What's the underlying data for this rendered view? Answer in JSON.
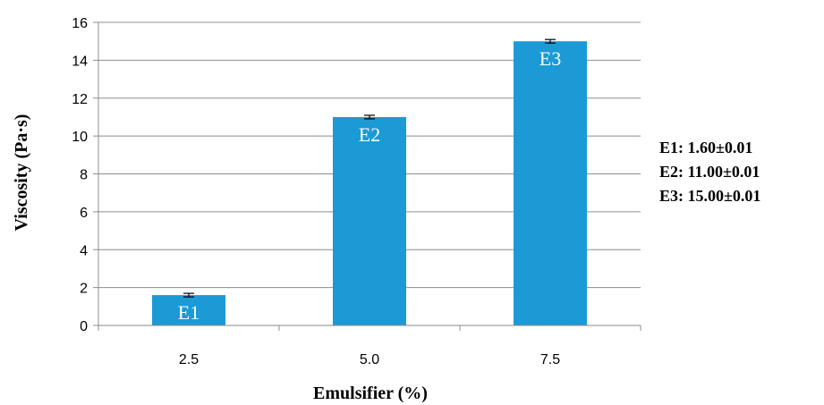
{
  "chart_data": {
    "type": "bar",
    "categories": [
      "2.5",
      "5.0",
      "7.5"
    ],
    "values": [
      1.6,
      11.0,
      15.0
    ],
    "errors": [
      0.01,
      0.01,
      0.01
    ],
    "bar_labels": [
      "E1",
      "E2",
      "E3"
    ],
    "xlabel": "Emulsifier (%)",
    "ylabel": "Viscosity (Pa·s)",
    "ylim": [
      0,
      16
    ],
    "yticks": [
      "0",
      "2",
      "4",
      "6",
      "8",
      "10",
      "12",
      "14",
      "16"
    ],
    "grid": true,
    "bar_color": "#1b9ad6",
    "annotations": [
      "E1: 1.60±0.01",
      "E2: 11.00±0.01",
      "E3: 15.00±0.01"
    ]
  }
}
